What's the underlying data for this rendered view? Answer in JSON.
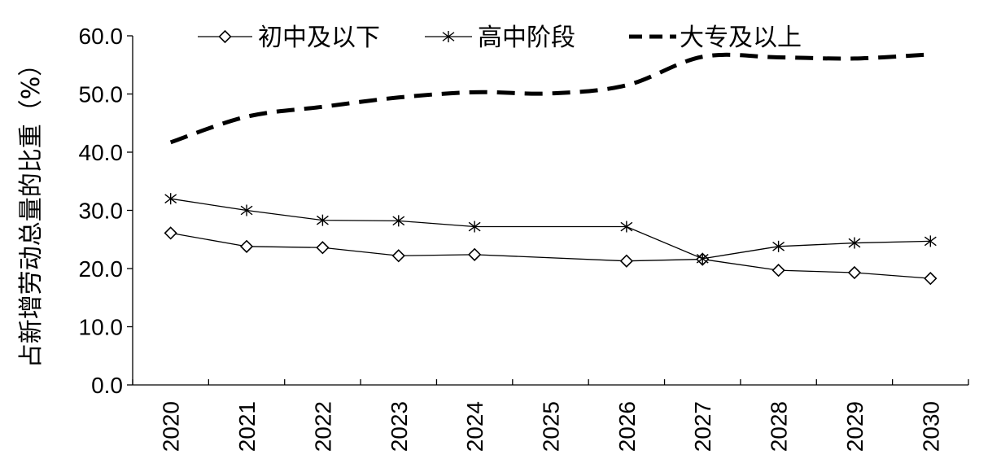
{
  "chart_data": {
    "type": "line",
    "title": "",
    "xlabel": "",
    "ylabel": "占新增劳动总量的比重（%）",
    "ylim": [
      0,
      60
    ],
    "yticks": [
      "0.0",
      "10.0",
      "20.0",
      "30.0",
      "40.0",
      "50.0",
      "60.0"
    ],
    "categories": [
      "2020",
      "2021",
      "2022",
      "2023",
      "2024",
      "2025",
      "2026",
      "2027",
      "2028",
      "2029",
      "2030"
    ],
    "legend_position": "top",
    "grid": false,
    "series": [
      {
        "name": "初中及以下",
        "marker": "diamond",
        "color": "#000000",
        "values": [
          26.1,
          23.8,
          23.6,
          22.2,
          22.4,
          null,
          21.3,
          21.6,
          19.7,
          19.3,
          18.3
        ]
      },
      {
        "name": "高中阶段",
        "marker": "asterisk",
        "color": "#000000",
        "values": [
          32.0,
          30.0,
          28.3,
          28.2,
          27.2,
          null,
          27.2,
          21.7,
          23.8,
          24.4,
          24.7
        ]
      },
      {
        "name": "大专及以上",
        "marker": "none",
        "color": "#000000",
        "dashed": true,
        "values": [
          41.7,
          46.1,
          47.8,
          49.4,
          50.3,
          50.1,
          51.5,
          56.4,
          56.3,
          56.1,
          56.8
        ]
      }
    ]
  }
}
